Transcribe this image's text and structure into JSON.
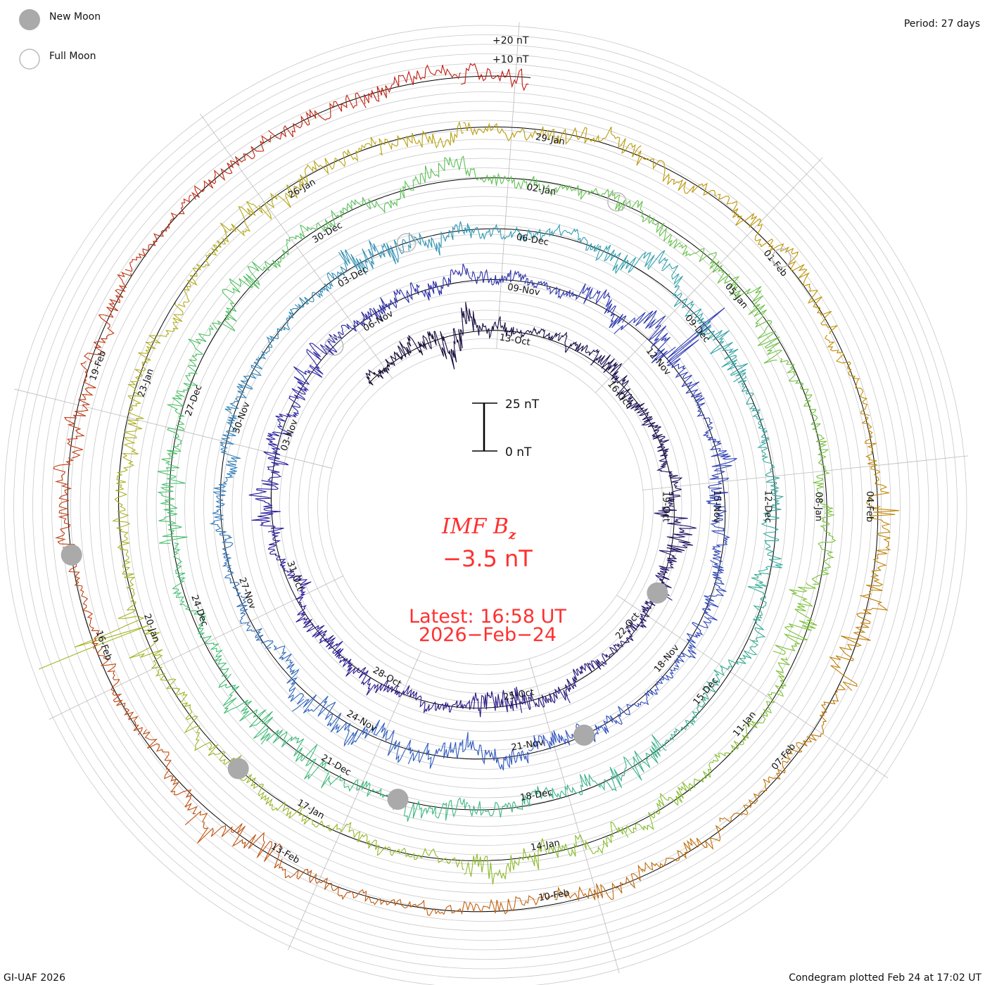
{
  "legend": {
    "new_moon": "New Moon",
    "full_moon": "Full Moon",
    "period": "Period: 27 days"
  },
  "scale_labels": {
    "plus20": "+20 nT",
    "plus10": "+10 nT",
    "bar_top": "25 nT",
    "bar_bottom": "0 nT"
  },
  "center": {
    "title": "IMF B",
    "subscript": "z",
    "value": "−3.5 nT",
    "latest": "Latest: 16:58 UT",
    "date": "2026−Feb−24"
  },
  "footer": {
    "left": "GI-UAF 2026",
    "right": "Condegram plotted Feb 24 at 17:02 UT"
  },
  "chart_data": {
    "type": "line",
    "subtype": "spiral condegram",
    "title": "IMF Bz",
    "units": "nT",
    "period_days": 27,
    "start_date": "2025-10-09",
    "end_date": "2026-02-24 16:58",
    "latest_value": -3.5,
    "first_label_date": "13-Oct",
    "label_step_days": 3,
    "date_labels": [
      "13-Oct",
      "16-Oct",
      "19-Oct",
      "22-Oct",
      "25-Oct",
      "28-Oct",
      "31-Oct",
      "03-Nov",
      "06-Nov",
      "09-Nov",
      "12-Nov",
      "15-Nov",
      "18-Nov",
      "21-Nov",
      "24-Nov",
      "27-Nov",
      "30-Nov",
      "03-Dec",
      "06-Dec",
      "09-Dec",
      "12-Dec",
      "15-Dec",
      "18-Dec",
      "21-Dec",
      "24-Dec",
      "27-Dec",
      "30-Dec",
      "02-Jan",
      "05-Jan",
      "08-Jan",
      "11-Jan",
      "14-Jan",
      "17-Jan",
      "20-Jan",
      "23-Jan",
      "26-Jan",
      "29-Jan",
      "01-Feb",
      "04-Feb",
      "07-Feb",
      "10-Feb",
      "13-Feb",
      "16-Feb",
      "19-Feb"
    ],
    "new_moons": [
      "2025-10-21",
      "2025-11-20",
      "2025-12-20",
      "2026-01-18",
      "2026-02-17"
    ],
    "full_moons": [
      "2025-11-05",
      "2025-12-04",
      "2026-01-03",
      "2026-02-01"
    ],
    "storm_spikes_nT": [
      {
        "date": "2025-11-12",
        "value": 45
      },
      {
        "date": "2026-01-20",
        "value": 60
      },
      {
        "date": "2026-02-04",
        "value": 15
      }
    ],
    "color_stops": [
      {
        "day": -4,
        "color": "#140a30"
      },
      {
        "day": 18,
        "color": "#2a1a9a"
      },
      {
        "day": 38,
        "color": "#3050c0"
      },
      {
        "day": 55,
        "color": "#30a0b0"
      },
      {
        "day": 72,
        "color": "#40c070"
      },
      {
        "day": 90,
        "color": "#80c030"
      },
      {
        "day": 102,
        "color": "#b0b020"
      },
      {
        "day": 112,
        "color": "#c09000"
      },
      {
        "day": 122,
        "color": "#c05a10"
      },
      {
        "day": 136,
        "color": "#c01010"
      }
    ]
  }
}
